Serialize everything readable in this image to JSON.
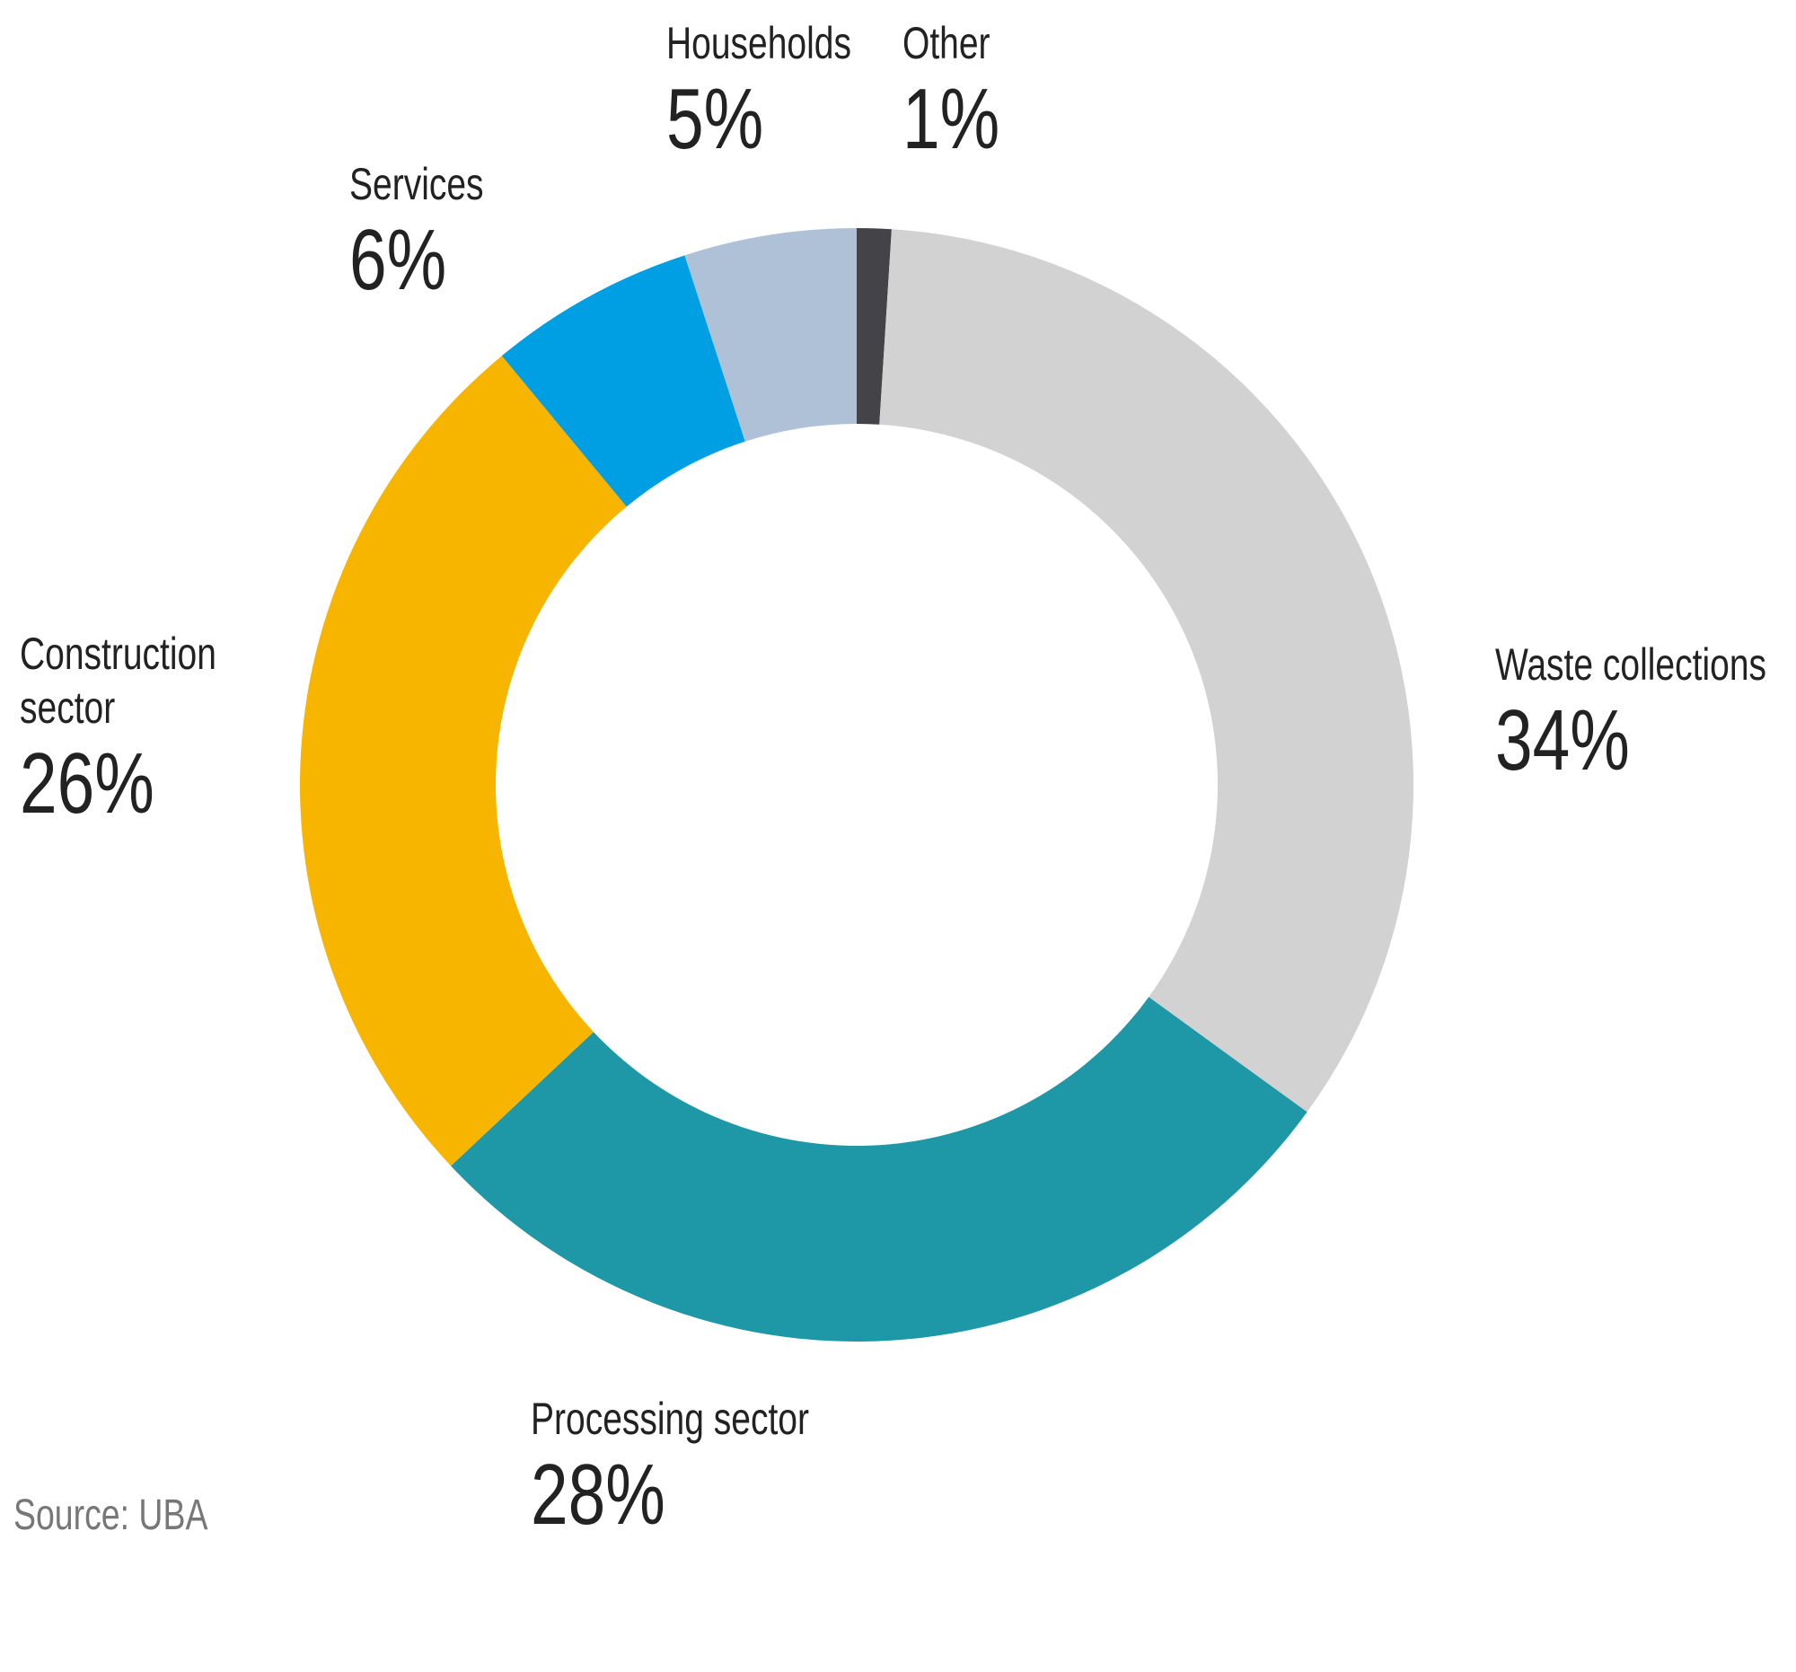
{
  "chart_data": {
    "type": "donut",
    "categories": [
      "Other",
      "Waste collections",
      "Processing sector",
      "Construction sector",
      "Services",
      "Households"
    ],
    "values": [
      1,
      34,
      28,
      26,
      6,
      5
    ],
    "value_labels": [
      "1%",
      "34%",
      "28%",
      "26%",
      "6%",
      "5%"
    ],
    "colors": [
      "#434348",
      "#d3d2d3",
      "#1e98a7",
      "#f8b500",
      "#009fe3",
      "#afc1d6"
    ],
    "source": "Source: UBA"
  }
}
